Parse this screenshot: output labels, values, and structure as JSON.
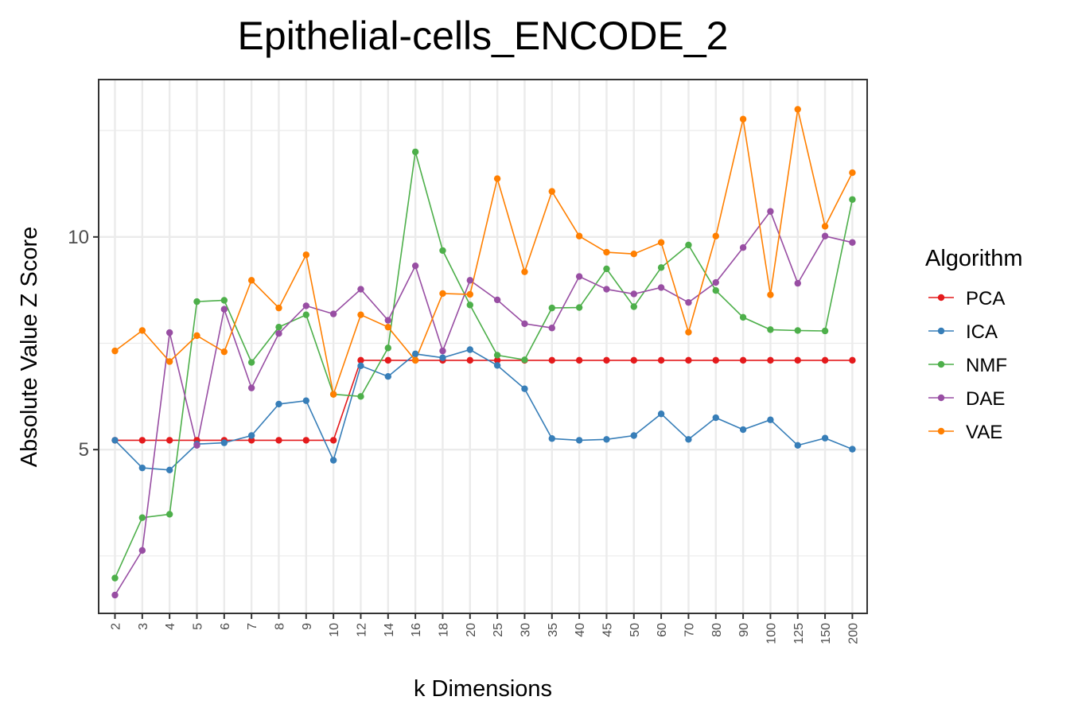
{
  "chart_data": {
    "type": "line",
    "title": "Epithelial-cells_ENCODE_2",
    "xlabel": "k Dimensions",
    "ylabel": "Absolute Value Z Score",
    "categories": [
      "2",
      "3",
      "4",
      "5",
      "6",
      "7",
      "8",
      "9",
      "10",
      "12",
      "14",
      "16",
      "18",
      "20",
      "25",
      "30",
      "35",
      "40",
      "45",
      "50",
      "60",
      "70",
      "80",
      "90",
      "100",
      "125",
      "150",
      "200"
    ],
    "ylim": [
      1.15,
      13.7
    ],
    "yticks": [
      5,
      10
    ],
    "y_minor_ticks": [
      2.5,
      7.5,
      12.5
    ],
    "grid": true,
    "legend": {
      "title": "Algorithm",
      "position": "right"
    },
    "series": [
      {
        "name": "PCA",
        "color": "#e41a1c",
        "values": [
          5.22,
          5.22,
          5.22,
          5.22,
          5.22,
          5.22,
          5.22,
          5.22,
          5.22,
          7.1,
          7.1,
          7.1,
          7.1,
          7.1,
          7.1,
          7.1,
          7.1,
          7.1,
          7.1,
          7.1,
          7.1,
          7.1,
          7.1,
          7.1,
          7.1,
          7.1,
          7.1,
          7.1
        ]
      },
      {
        "name": "ICA",
        "color": "#377eb8",
        "values": [
          5.22,
          4.57,
          4.52,
          5.13,
          5.16,
          5.33,
          6.07,
          6.15,
          4.75,
          6.97,
          6.72,
          7.25,
          7.16,
          7.35,
          6.98,
          6.43,
          5.26,
          5.22,
          5.24,
          5.33,
          5.84,
          5.24,
          5.75,
          5.47,
          5.7,
          5.1,
          5.27,
          5.01
        ]
      },
      {
        "name": "NMF",
        "color": "#4daf4a",
        "values": [
          1.98,
          3.4,
          3.48,
          8.48,
          8.51,
          7.05,
          7.88,
          8.17,
          6.3,
          6.25,
          7.39,
          12.0,
          9.68,
          8.4,
          7.22,
          7.11,
          8.33,
          8.34,
          9.25,
          8.36,
          9.28,
          9.81,
          8.74,
          8.11,
          7.82,
          7.8,
          7.79,
          10.88
        ]
      },
      {
        "name": "DAE",
        "color": "#984ea3",
        "values": [
          1.58,
          2.63,
          7.75,
          5.1,
          8.3,
          6.45,
          7.73,
          8.38,
          8.19,
          8.77,
          8.04,
          9.32,
          7.32,
          8.98,
          8.52,
          7.96,
          7.86,
          9.07,
          8.77,
          8.66,
          8.81,
          8.46,
          8.93,
          9.75,
          10.6,
          8.91,
          10.02,
          9.87
        ]
      },
      {
        "name": "VAE",
        "color": "#ff7f00",
        "values": [
          7.32,
          7.8,
          7.07,
          7.68,
          7.3,
          8.98,
          8.33,
          9.58,
          6.3,
          8.17,
          7.88,
          7.1,
          8.67,
          8.65,
          11.37,
          9.18,
          11.07,
          10.02,
          9.64,
          9.6,
          9.87,
          7.76,
          10.02,
          12.77,
          8.64,
          13.0,
          10.25,
          11.51
        ]
      }
    ]
  }
}
